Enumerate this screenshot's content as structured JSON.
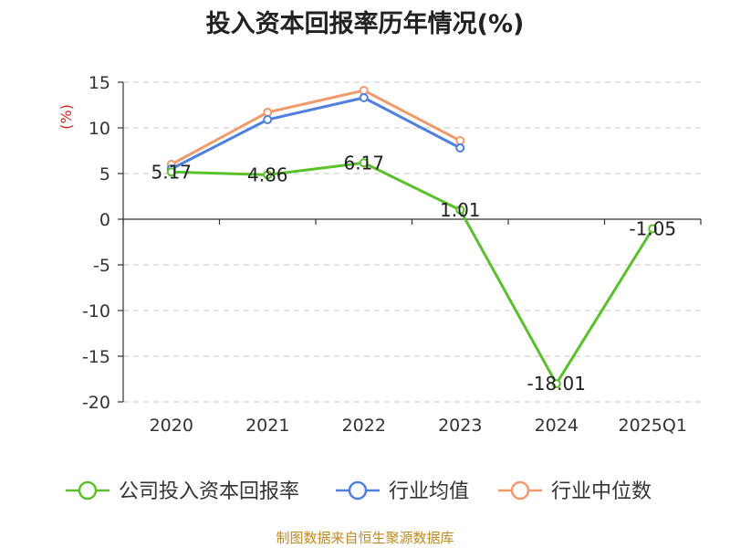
{
  "title": "投入资本回报率历年情况(%)",
  "source": "制图数据来自恒生聚源数据库",
  "colors": {
    "company": "#5ac02b",
    "average": "#4f7fe0",
    "median": "#f29a6b",
    "ylabel": "#e02020"
  },
  "chart_data": {
    "type": "line",
    "title": "投入资本回报率历年情况(%)",
    "ylabel": "(%)",
    "xlabel": "",
    "categories": [
      "2020",
      "2021",
      "2022",
      "2023",
      "2024",
      "2025Q1"
    ],
    "yticks": [
      15,
      10,
      5,
      0,
      -5,
      -10,
      -15,
      -20
    ],
    "ylim": [
      -20,
      15
    ],
    "grid": true,
    "legend_position": "bottom",
    "series": [
      {
        "name": "公司投入资本回报率",
        "values": [
          5.17,
          4.86,
          6.17,
          1.01,
          -18.01,
          -1.05
        ],
        "labels": [
          "5.17",
          "4.86",
          "6.17",
          "1.01",
          "-18.01",
          "-1.05"
        ],
        "color": "#5ac02b"
      },
      {
        "name": "行业均值",
        "values": [
          5.5,
          10.9,
          13.3,
          7.8,
          null,
          null
        ],
        "color": "#4f7fe0"
      },
      {
        "name": "行业中位数",
        "values": [
          6.0,
          11.7,
          14.1,
          8.6,
          null,
          null
        ],
        "color": "#f29a6b"
      }
    ]
  }
}
